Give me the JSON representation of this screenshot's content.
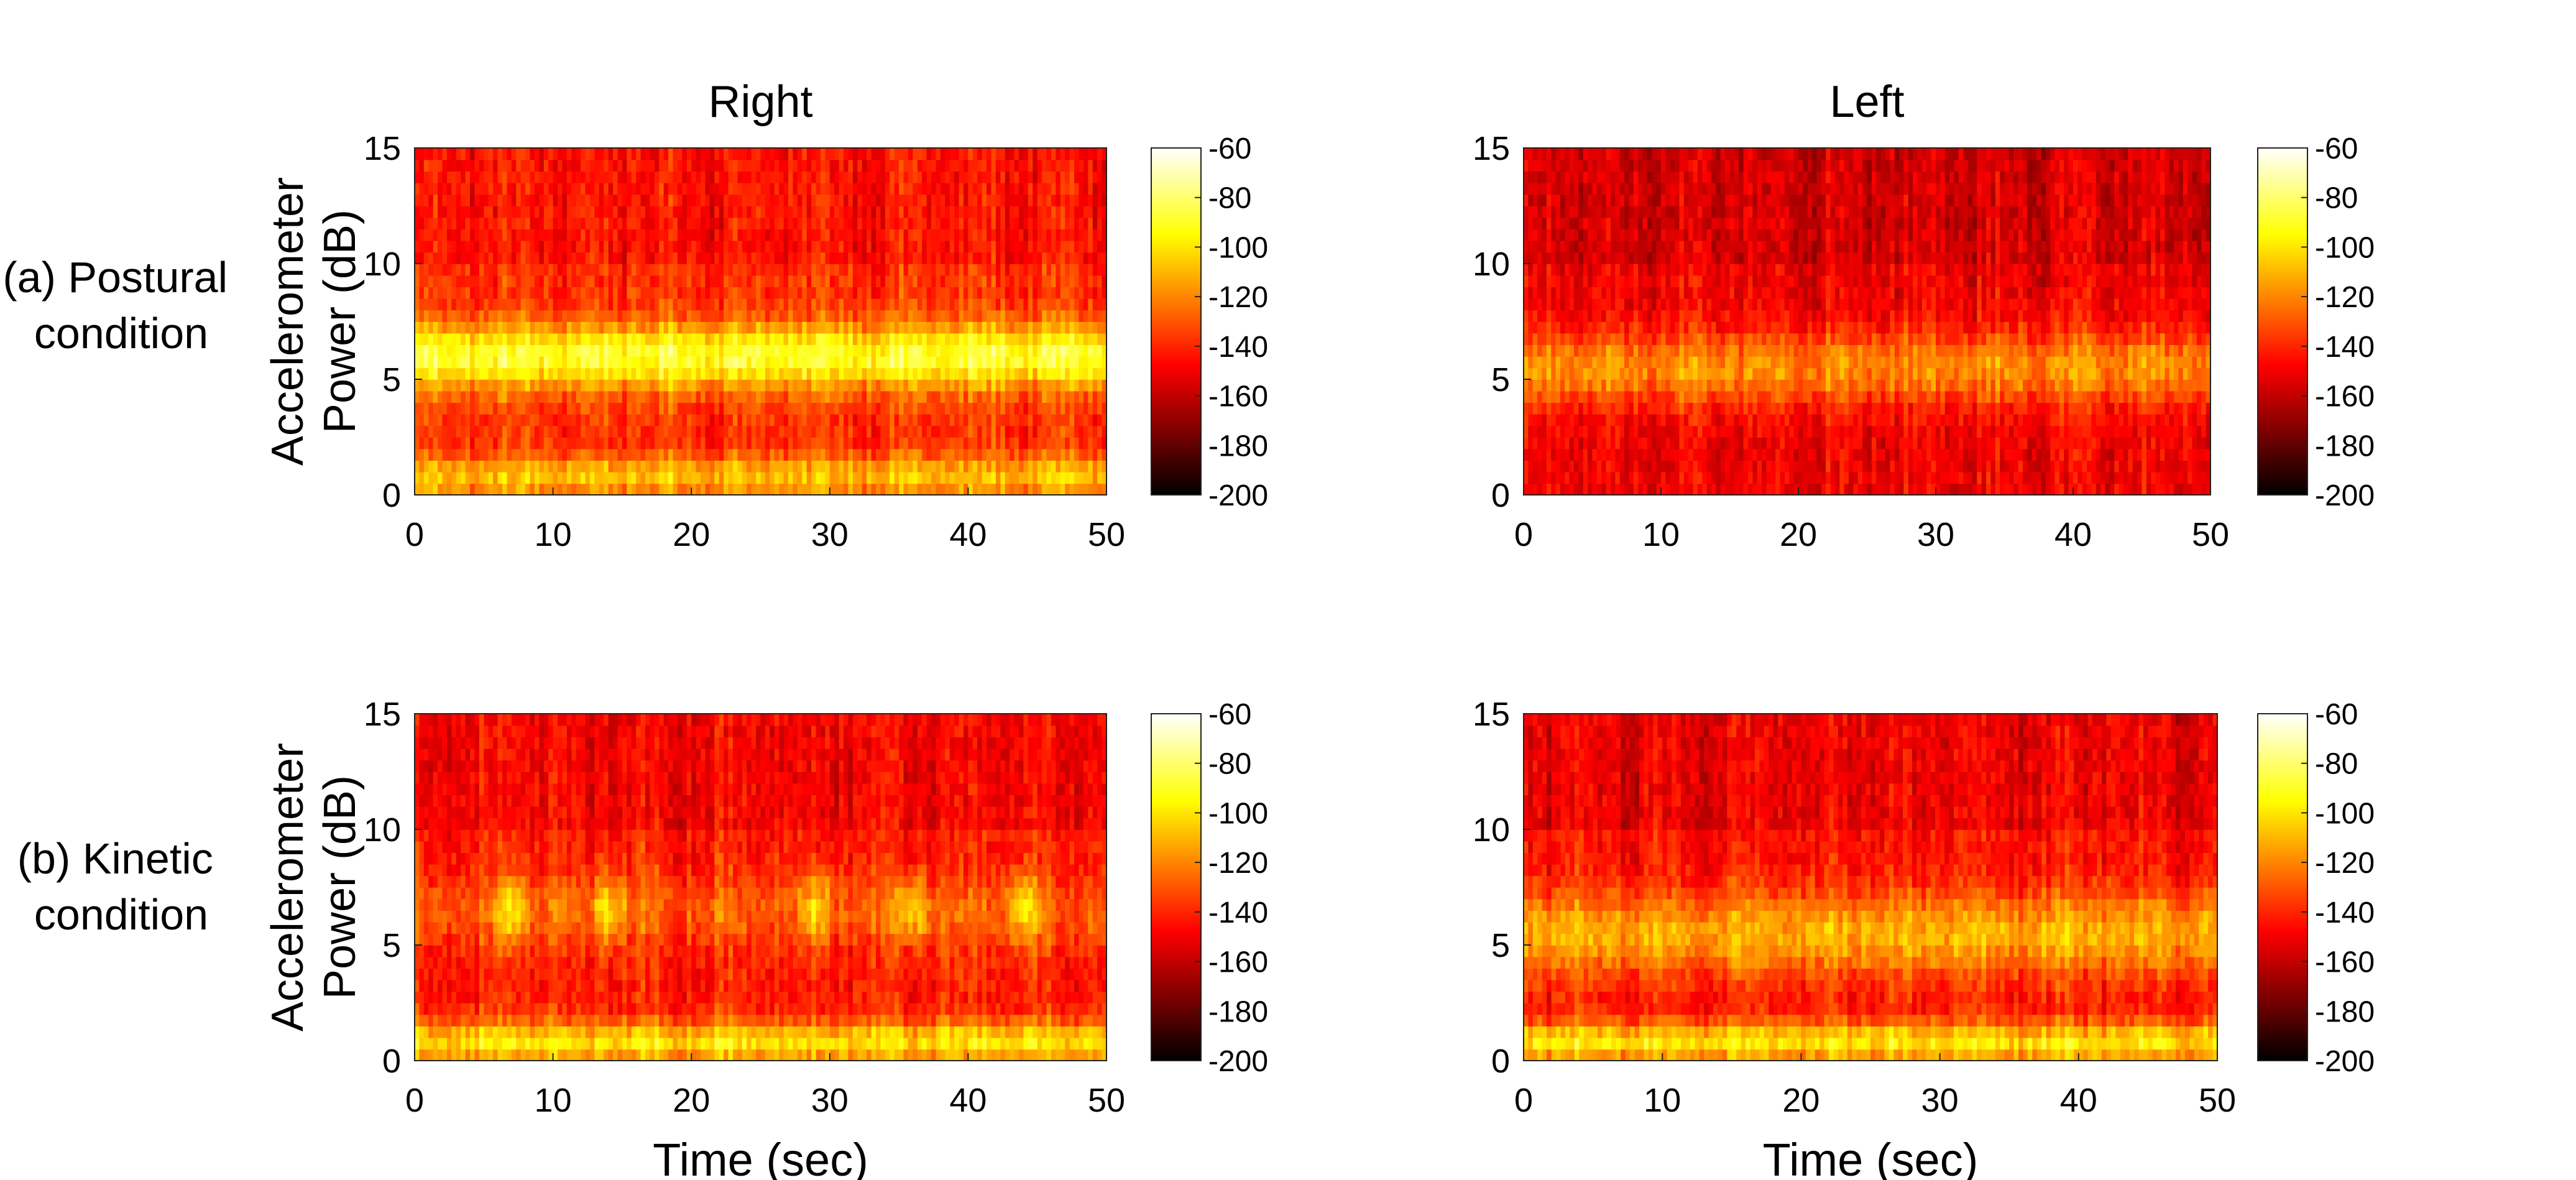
{
  "figure": {
    "row_labels": [
      [
        "(a) Postural",
        "condition"
      ],
      [
        "(b) Kinetic",
        "condition"
      ]
    ],
    "ylabel_lines": [
      "Accelerometer",
      "Power (dB)"
    ],
    "xlabel": "Time (sec)"
  },
  "colormap": {
    "name": "hot",
    "stops": [
      [
        0.0,
        "#000000"
      ],
      [
        0.375,
        "#ff0000"
      ],
      [
        0.75,
        "#ffff00"
      ],
      [
        1.0,
        "#ffffff"
      ]
    ]
  },
  "chart_data": [
    {
      "type": "heatmap",
      "panel": "postural-right",
      "title": "Right",
      "xlabel": "",
      "ylabel": "Accelerometer Power (dB)",
      "x_range": [
        0,
        50
      ],
      "y_range": [
        0,
        15
      ],
      "xticks": [
        0,
        10,
        20,
        30,
        40,
        50
      ],
      "yticks": [
        0,
        5,
        10,
        15
      ],
      "colorbar": {
        "range": [
          -200,
          -60
        ],
        "ticks": [
          -60,
          -80,
          -100,
          -120,
          -140,
          -160,
          -180,
          -200
        ]
      },
      "base_level_db": -138,
      "bands": [
        {
          "freq": 6.0,
          "width": 1.4,
          "peak_db": -88
        },
        {
          "freq": 0.8,
          "width": 0.9,
          "peak_db": -108
        }
      ],
      "notes": "Strong continuous tremor band around 5-7 Hz across the whole recording; weaker band near 0-2 Hz; darker region near 3 Hz and above 10 Hz."
    },
    {
      "type": "heatmap",
      "panel": "postural-left",
      "title": "Left",
      "xlabel": "",
      "ylabel": "",
      "x_range": [
        0,
        50
      ],
      "y_range": [
        0,
        15
      ],
      "xticks": [
        0,
        10,
        20,
        30,
        40,
        50
      ],
      "yticks": [
        0,
        5,
        10,
        15
      ],
      "colorbar": {
        "range": [
          -200,
          -60
        ],
        "ticks": [
          -60,
          -80,
          -100,
          -120,
          -140,
          -160,
          -180,
          -200
        ]
      },
      "base_level_db": -150,
      "bands": [
        {
          "freq": 5.5,
          "width": 1.6,
          "peak_db": -118
        }
      ],
      "notes": "Weak, intermittent band near 5-6 Hz; mostly red/dark background."
    },
    {
      "type": "heatmap",
      "panel": "kinetic-right",
      "title": "",
      "xlabel": "Time (sec)",
      "ylabel": "Accelerometer Power (dB)",
      "x_range": [
        0,
        50
      ],
      "y_range": [
        0,
        15
      ],
      "xticks": [
        0,
        10,
        20,
        30,
        40,
        50
      ],
      "yticks": [
        0,
        5,
        10,
        15
      ],
      "colorbar": {
        "range": [
          -200,
          -60
        ],
        "ticks": [
          -60,
          -80,
          -100,
          -120,
          -140,
          -160,
          -180,
          -200
        ]
      },
      "base_level_db": -142,
      "bands": [
        {
          "freq": 6.5,
          "width": 1.5,
          "peak_db": -100
        },
        {
          "freq": 0.8,
          "width": 0.9,
          "peak_db": -100
        }
      ],
      "bursts": [
        7,
        14,
        29,
        36,
        44
      ],
      "notes": "Intermittent bursts near 6-7 Hz around t = 7, 14, 29, 36, 44 s; bright low-frequency band."
    },
    {
      "type": "heatmap",
      "panel": "kinetic-left",
      "title": "",
      "xlabel": "Time (sec)",
      "ylabel": "",
      "x_range": [
        0,
        50
      ],
      "y_range": [
        0,
        15
      ],
      "xticks": [
        0,
        10,
        20,
        30,
        40,
        50
      ],
      "yticks": [
        0,
        5,
        10,
        15
      ],
      "colorbar": {
        "range": [
          -200,
          -60
        ],
        "ticks": [
          -60,
          -80,
          -100,
          -120,
          -140,
          -160,
          -180,
          -200
        ]
      },
      "base_level_db": -145,
      "bands": [
        {
          "freq": 5.5,
          "width": 1.8,
          "peak_db": -112
        },
        {
          "freq": 0.8,
          "width": 0.9,
          "peak_db": -100
        }
      ],
      "notes": "Diffuse intermittent activity around 4-8 Hz; bright low-frequency band near 0-2 Hz."
    }
  ]
}
